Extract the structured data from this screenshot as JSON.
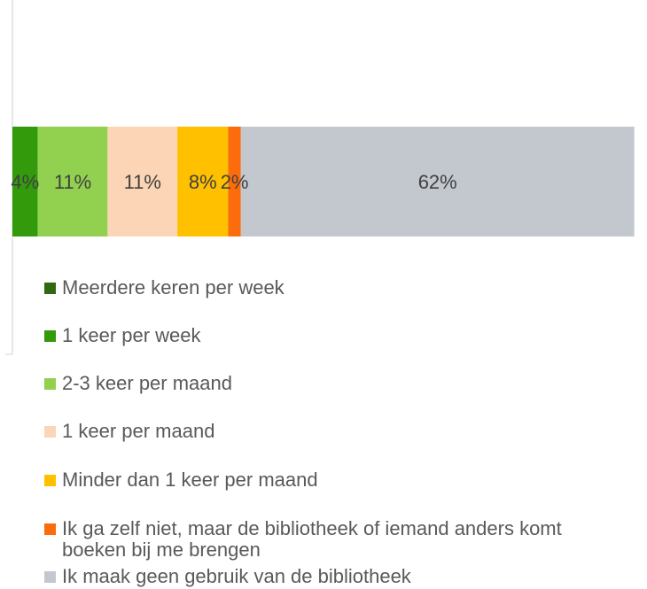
{
  "chart_data": {
    "type": "stacked_bar_horizontal",
    "categories": [
      null
    ],
    "series": [
      {
        "name": "Meerdere keren per week",
        "color": "#2e6b10",
        "values": [
          0
        ],
        "value_labels": [
          null
        ]
      },
      {
        "name": "1 keer per week",
        "color": "#339a0b",
        "values": [
          4
        ],
        "value_labels": [
          "4%"
        ]
      },
      {
        "name": "2-3 keer per maand",
        "color": "#92d050",
        "values": [
          11
        ],
        "value_labels": [
          "11%"
        ]
      },
      {
        "name": "1 keer per maand",
        "color": "#fbd5b5",
        "values": [
          11
        ],
        "value_labels": [
          "11%"
        ]
      },
      {
        "name": "Minder dan 1 keer per maand",
        "color": "#ffc000",
        "values": [
          8
        ],
        "value_labels": [
          "8%"
        ]
      },
      {
        "name": "Ik ga zelf niet, maar de bibliotheek of iemand anders komt boeken bij me brengen",
        "color": "#fb6c0c",
        "values": [
          2
        ],
        "value_labels": [
          "2%"
        ]
      },
      {
        "name": "Ik maak geen gebruik van de bibliotheek",
        "color": "#c3c8cf",
        "values": [
          62
        ],
        "value_labels": [
          "62%"
        ]
      }
    ],
    "xlim": [
      0,
      100
    ]
  }
}
